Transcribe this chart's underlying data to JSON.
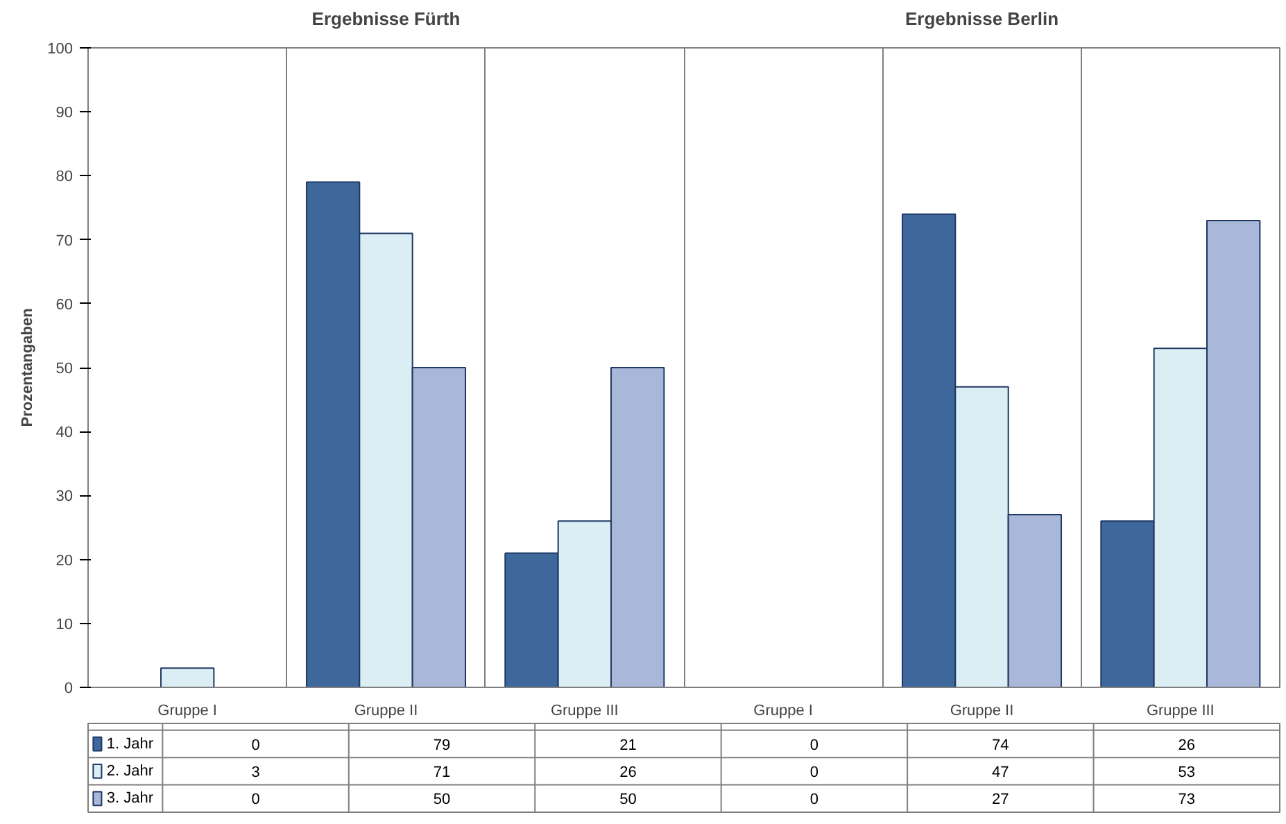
{
  "chart_data": {
    "type": "bar",
    "ylabel": "Prozentangaben",
    "annotations": [
      "Ergebnisse Fürth",
      "Ergebnisse Berlin"
    ],
    "categories": [
      "Gruppe I",
      "Gruppe II",
      "Gruppe III",
      "Gruppe I",
      "Gruppe II",
      "Gruppe III"
    ],
    "series": [
      {
        "name": "1. Jahr",
        "color": "#3e689b",
        "values": [
          0,
          79,
          21,
          0,
          74,
          26
        ]
      },
      {
        "name": "2. Jahr",
        "color": "#dbeef4",
        "values": [
          3,
          71,
          26,
          0,
          47,
          53
        ]
      },
      {
        "name": "3. Jahr",
        "color": "#a9b8d8",
        "values": [
          0,
          50,
          50,
          0,
          27,
          73
        ]
      }
    ],
    "ylim": [
      0,
      100
    ],
    "yticks": [
      0,
      10,
      20,
      30,
      40,
      50,
      60,
      70,
      80,
      90,
      100
    ],
    "grid": "x",
    "data_labels": true,
    "legend": "bottom"
  }
}
